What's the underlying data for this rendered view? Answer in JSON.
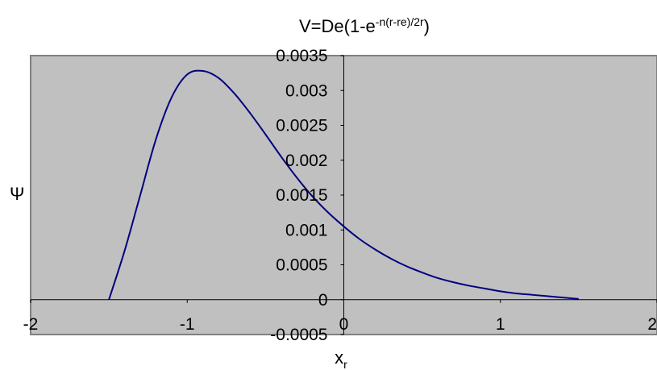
{
  "chart_data": {
    "type": "line",
    "title": {
      "prefix": "V=De(1-e",
      "superscript": "-n(r-re)/2r",
      "suffix": ")"
    },
    "xlabel": {
      "main": "x",
      "subscript": "r"
    },
    "ylabel": "Ψ",
    "xlim": [
      -2,
      2
    ],
    "ylim": [
      -0.0005,
      0.0035
    ],
    "x_ticks": [
      {
        "value": -2,
        "label": "-2"
      },
      {
        "value": -1,
        "label": "-1"
      },
      {
        "value": 0,
        "label": "0"
      },
      {
        "value": 1,
        "label": "1"
      },
      {
        "value": 2,
        "label": "2"
      }
    ],
    "y_ticks": [
      {
        "value": -0.0005,
        "label": "-0.0005"
      },
      {
        "value": 0,
        "label": "0"
      },
      {
        "value": 0.0005,
        "label": "0.0005"
      },
      {
        "value": 0.001,
        "label": "0.001"
      },
      {
        "value": 0.0015,
        "label": "0.0015"
      },
      {
        "value": 0.002,
        "label": "0.002"
      },
      {
        "value": 0.0025,
        "label": "0.0025"
      },
      {
        "value": 0.003,
        "label": "0.003"
      },
      {
        "value": 0.0035,
        "label": "0.0035"
      }
    ],
    "grid": false,
    "legend": "none",
    "series": [
      {
        "color": "#000080",
        "x": [
          -1.5,
          -1.4,
          -1.3,
          -1.2,
          -1.1,
          -1.0,
          -0.9,
          -0.8,
          -0.7,
          -0.6,
          -0.5,
          -0.4,
          -0.3,
          -0.2,
          -0.1,
          0.0,
          0.1,
          0.2,
          0.3,
          0.4,
          0.5,
          0.6,
          0.7,
          0.8,
          0.9,
          1.0,
          1.1,
          1.2,
          1.3,
          1.4,
          1.5
        ],
        "y": [
          0.0,
          0.0007,
          0.0015,
          0.0023,
          0.0029,
          0.00323,
          0.00328,
          0.00318,
          0.00296,
          0.00268,
          0.00237,
          0.00205,
          0.00175,
          0.00148,
          0.00125,
          0.00105,
          0.00087,
          0.00072,
          0.00059,
          0.00048,
          0.00039,
          0.00031,
          0.00025,
          0.0002,
          0.00016,
          0.00012,
          9e-05,
          7e-05,
          5e-05,
          3e-05,
          1e-05
        ]
      }
    ]
  },
  "colors": {
    "plot_area": "#c0c0c0",
    "frame": "#808080",
    "axis": "#000000",
    "series": "#000080"
  }
}
